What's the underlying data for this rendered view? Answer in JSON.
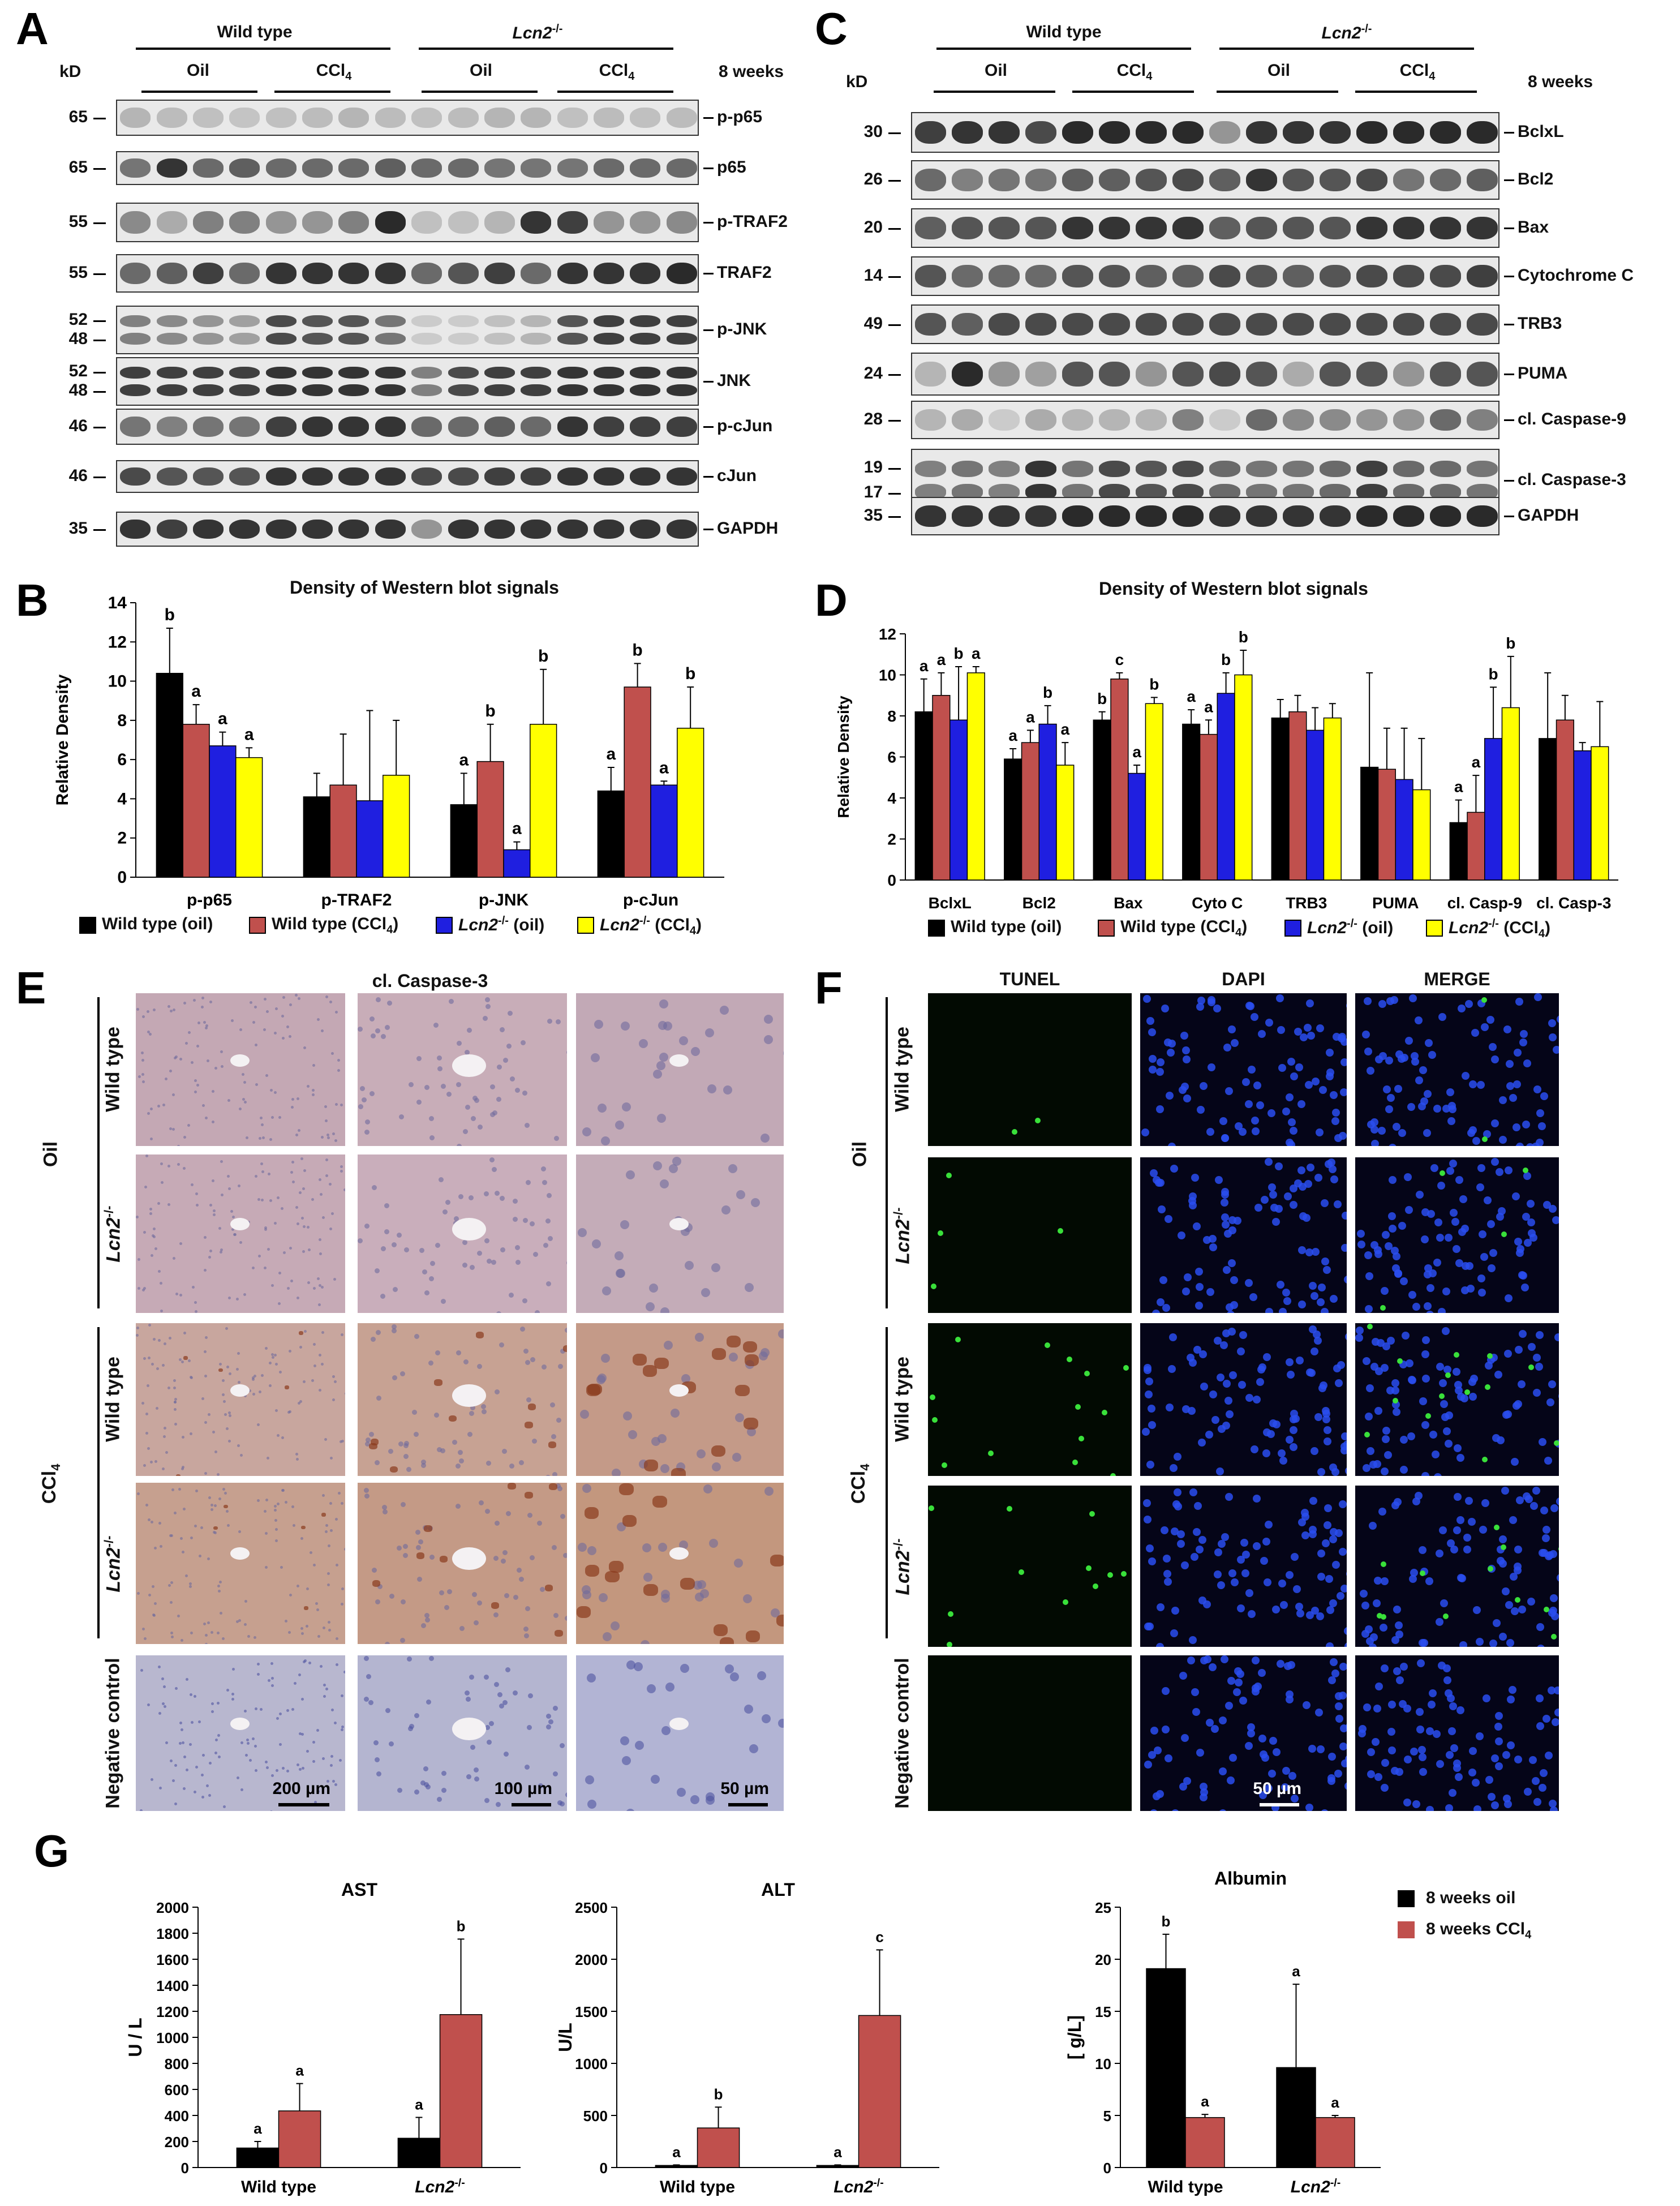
{
  "colors": {
    "wt_oil": "#000000",
    "wt_ccl4": "#c0504d",
    "ko_oil": "#1f1fe0",
    "ko_ccl4": "#ffff00",
    "bar_red": "#c0504d"
  },
  "panelA": {
    "letter": "A",
    "kd": "kD",
    "wt": "Wild type",
    "ko": "Lcn2",
    "ko_sup": "-/-",
    "oil": "Oil",
    "ccl4": "CCl",
    "ccl4_sub": "4",
    "weeks": "8 weeks",
    "blots": [
      {
        "kd": [
          "65"
        ],
        "label": "p-p65",
        "bands": [
          0.25,
          0.22,
          0.2,
          0.18,
          0.2,
          0.22,
          0.25,
          0.22,
          0.2,
          0.22,
          0.25,
          0.25,
          0.2,
          0.22,
          0.2,
          0.22
        ]
      },
      {
        "kd": [
          "65"
        ],
        "label": "p65",
        "bands": [
          0.55,
          0.85,
          0.6,
          0.65,
          0.6,
          0.6,
          0.6,
          0.65,
          0.6,
          0.6,
          0.55,
          0.55,
          0.55,
          0.6,
          0.6,
          0.6
        ]
      },
      {
        "kd": [
          "55"
        ],
        "label": "p-TRAF2",
        "bands": [
          0.45,
          0.3,
          0.5,
          0.5,
          0.4,
          0.4,
          0.5,
          0.9,
          0.2,
          0.2,
          0.25,
          0.85,
          0.8,
          0.4,
          0.4,
          0.45
        ]
      },
      {
        "kd": [
          "55"
        ],
        "label": "TRAF2",
        "bands": [
          0.6,
          0.65,
          0.8,
          0.6,
          0.85,
          0.85,
          0.85,
          0.85,
          0.6,
          0.7,
          0.8,
          0.6,
          0.85,
          0.85,
          0.85,
          0.9
        ]
      },
      {
        "kd": [
          "52",
          "48"
        ],
        "label": "p-JNK",
        "bands": [
          0.5,
          0.45,
          0.4,
          0.35,
          0.75,
          0.7,
          0.7,
          0.55,
          0.15,
          0.15,
          0.2,
          0.25,
          0.7,
          0.8,
          0.8,
          0.8
        ]
      },
      {
        "kd": [
          "52",
          "48"
        ],
        "label": "JNK",
        "bands": [
          0.8,
          0.8,
          0.8,
          0.8,
          0.85,
          0.85,
          0.85,
          0.85,
          0.5,
          0.75,
          0.8,
          0.8,
          0.85,
          0.85,
          0.85,
          0.85
        ]
      },
      {
        "kd": [
          "46"
        ],
        "label": "p-cJun",
        "bands": [
          0.55,
          0.5,
          0.55,
          0.55,
          0.8,
          0.85,
          0.85,
          0.85,
          0.6,
          0.6,
          0.65,
          0.6,
          0.85,
          0.8,
          0.8,
          0.8
        ]
      },
      {
        "kd": [
          "46"
        ],
        "label": "cJun",
        "bands": [
          0.75,
          0.7,
          0.7,
          0.7,
          0.85,
          0.85,
          0.85,
          0.85,
          0.75,
          0.75,
          0.8,
          0.8,
          0.85,
          0.85,
          0.85,
          0.85
        ]
      },
      {
        "kd": [
          "35"
        ],
        "label": "GAPDH",
        "bands": [
          0.85,
          0.8,
          0.85,
          0.85,
          0.85,
          0.85,
          0.85,
          0.85,
          0.4,
          0.85,
          0.85,
          0.85,
          0.85,
          0.85,
          0.85,
          0.85
        ]
      }
    ]
  },
  "panelC": {
    "letter": "C",
    "kd": "kD",
    "wt": "Wild type",
    "ko": "Lcn2",
    "ko_sup": "-/-",
    "oil": "Oil",
    "ccl4": "CCl",
    "ccl4_sub": "4",
    "weeks": "8 weeks",
    "blots": [
      {
        "kd": [
          "30"
        ],
        "label": "BclxL",
        "bands": [
          0.8,
          0.85,
          0.85,
          0.75,
          0.9,
          0.9,
          0.9,
          0.9,
          0.4,
          0.85,
          0.85,
          0.85,
          0.9,
          0.9,
          0.9,
          0.9
        ]
      },
      {
        "kd": [
          "26"
        ],
        "label": "Bcl2",
        "bands": [
          0.6,
          0.5,
          0.55,
          0.55,
          0.65,
          0.65,
          0.7,
          0.75,
          0.65,
          0.85,
          0.7,
          0.7,
          0.75,
          0.55,
          0.6,
          0.65
        ]
      },
      {
        "kd": [
          "20"
        ],
        "label": "Bax",
        "bands": [
          0.65,
          0.7,
          0.7,
          0.7,
          0.85,
          0.85,
          0.85,
          0.85,
          0.65,
          0.7,
          0.7,
          0.7,
          0.85,
          0.85,
          0.85,
          0.85
        ]
      },
      {
        "kd": [
          "14"
        ],
        "label": "Cytochrome C",
        "bands": [
          0.7,
          0.6,
          0.6,
          0.6,
          0.7,
          0.7,
          0.65,
          0.65,
          0.75,
          0.7,
          0.65,
          0.7,
          0.75,
          0.75,
          0.75,
          0.8
        ]
      },
      {
        "kd": [
          "49"
        ],
        "label": "TRB3",
        "bands": [
          0.7,
          0.65,
          0.75,
          0.75,
          0.75,
          0.75,
          0.75,
          0.75,
          0.75,
          0.75,
          0.75,
          0.75,
          0.75,
          0.75,
          0.75,
          0.75
        ]
      },
      {
        "kd": [
          "24"
        ],
        "label": "PUMA",
        "bands": [
          0.25,
          0.9,
          0.4,
          0.35,
          0.7,
          0.7,
          0.4,
          0.7,
          0.75,
          0.7,
          0.3,
          0.7,
          0.7,
          0.4,
          0.7,
          0.7
        ]
      },
      {
        "kd": [
          "28"
        ],
        "label": "cl. Caspase-9",
        "bands": [
          0.25,
          0.3,
          0.15,
          0.3,
          0.25,
          0.25,
          0.25,
          0.5,
          0.15,
          0.6,
          0.45,
          0.45,
          0.4,
          0.4,
          0.6,
          0.5
        ]
      },
      {
        "kd": [
          "19",
          "17"
        ],
        "label": "cl. Caspase-3",
        "bands": [
          0.5,
          0.55,
          0.5,
          0.85,
          0.55,
          0.75,
          0.7,
          0.75,
          0.6,
          0.55,
          0.55,
          0.6,
          0.8,
          0.6,
          0.6,
          0.55
        ]
      },
      {
        "kd": [
          "35"
        ],
        "label": "GAPDH",
        "bands": [
          0.85,
          0.85,
          0.85,
          0.85,
          0.9,
          0.9,
          0.9,
          0.9,
          0.85,
          0.85,
          0.85,
          0.85,
          0.9,
          0.9,
          0.9,
          0.9
        ]
      }
    ]
  },
  "panelB": {
    "letter": "B",
    "chart_data": {
      "type": "bar",
      "title": "Density of Western blot signals",
      "ylabel": "Relative Density",
      "ylim": [
        0,
        14
      ],
      "yticks": [
        0,
        2,
        4,
        6,
        8,
        10,
        12,
        14
      ],
      "categories": [
        "p-p65",
        "p-TRAF2",
        "p-JNK",
        "p-cJun"
      ],
      "series": [
        {
          "name": "Wild type (oil)",
          "values": [
            10.4,
            4.1,
            3.7,
            4.4
          ],
          "err": [
            2.3,
            1.2,
            1.6,
            1.2
          ],
          "letters": [
            "b",
            "",
            "a",
            "a"
          ]
        },
        {
          "name": "Wild type (CCl4)",
          "values": [
            7.8,
            4.7,
            5.9,
            9.7
          ],
          "err": [
            1.0,
            2.6,
            1.9,
            1.2
          ],
          "letters": [
            "a",
            "",
            "b",
            "b"
          ]
        },
        {
          "name": "Lcn2-/- (oil)",
          "values": [
            6.7,
            3.9,
            1.4,
            4.7
          ],
          "err": [
            0.7,
            4.6,
            0.4,
            0.2
          ],
          "letters": [
            "a",
            "",
            "a",
            "a"
          ]
        },
        {
          "name": "Lcn2-/- (CCl4)",
          "values": [
            6.1,
            5.2,
            7.8,
            7.6
          ],
          "err": [
            0.5,
            2.8,
            2.8,
            2.1
          ],
          "letters": [
            "a",
            "",
            "b",
            "b"
          ]
        }
      ]
    }
  },
  "panelD": {
    "letter": "D",
    "chart_data": {
      "type": "bar",
      "title": "Density of Western blot signals",
      "ylabel": "Relative Density",
      "ylim": [
        0,
        12
      ],
      "yticks": [
        0,
        2,
        4,
        6,
        8,
        10,
        12
      ],
      "categories": [
        "BclxL",
        "Bcl2",
        "Bax",
        "Cyto C",
        "TRB3",
        "PUMA",
        "cl. Casp-9",
        "cl. Casp-3"
      ],
      "series": [
        {
          "name": "Wild type (oil)",
          "values": [
            8.2,
            5.9,
            7.8,
            7.6,
            7.9,
            5.5,
            2.8,
            6.9
          ],
          "err": [
            1.6,
            0.5,
            0.4,
            0.7,
            0.9,
            4.6,
            1.1,
            3.2
          ],
          "letters": [
            "a",
            "a",
            "b",
            "a",
            "",
            "",
            "a",
            ""
          ]
        },
        {
          "name": "Wild type (CCl4)",
          "values": [
            9.0,
            6.7,
            9.8,
            7.1,
            8.2,
            5.4,
            3.3,
            7.8
          ],
          "err": [
            1.1,
            0.6,
            0.3,
            0.7,
            0.8,
            2.0,
            1.8,
            1.2
          ],
          "letters": [
            "a",
            "a",
            "c",
            "a",
            "",
            "",
            "a",
            ""
          ]
        },
        {
          "name": "Lcn2-/- (oil)",
          "values": [
            7.8,
            7.6,
            5.2,
            9.1,
            7.3,
            4.9,
            6.9,
            6.3
          ],
          "err": [
            2.6,
            0.9,
            0.4,
            1.0,
            1.1,
            2.5,
            2.5,
            0.4
          ],
          "letters": [
            "b",
            "b",
            "a",
            "b",
            "",
            "",
            "b",
            ""
          ]
        },
        {
          "name": "Lcn2-/- (CCl4)",
          "values": [
            10.1,
            5.6,
            8.6,
            10.0,
            7.9,
            4.4,
            8.4,
            6.5
          ],
          "err": [
            0.3,
            1.1,
            0.3,
            1.2,
            0.7,
            2.5,
            2.5,
            2.2
          ],
          "letters": [
            "a",
            "a",
            "b",
            "b",
            "",
            "",
            "b",
            ""
          ]
        }
      ]
    }
  },
  "legend": {
    "items": [
      {
        "pre": "Wild type (oil)",
        "it": "",
        "sup": "",
        "post": "",
        "sub": "",
        "end": ""
      },
      {
        "pre": "Wild type (CCl",
        "it": "",
        "sup": "",
        "post": "",
        "sub": "4",
        "end": ")"
      },
      {
        "pre": "",
        "it": "Lcn2",
        "sup": "-/-",
        "post": " (oil)",
        "sub": "",
        "end": ""
      },
      {
        "pre": "",
        "it": "Lcn2",
        "sup": "-/-",
        "post": " (CCl",
        "sub": "4",
        "end": ")"
      }
    ]
  },
  "panelE": {
    "letter": "E",
    "title": "cl. Caspase-3",
    "group_oil": "Oil",
    "group_ccl4": "CCl",
    "group_ccl4_sub": "4",
    "row_wt": "Wild type",
    "row_ko": "Lcn2",
    "row_ko_sup": "-/-",
    "row_neg": "Negative control",
    "scales": [
      "200 µm",
      "100 µm",
      "50 µm"
    ]
  },
  "panelF": {
    "letter": "F",
    "cols": [
      "TUNEL",
      "DAPI",
      "MERGE"
    ],
    "group_oil": "Oil",
    "group_ccl4": "CCl",
    "group_ccl4_sub": "4",
    "row_wt": "Wild type",
    "row_ko": "Lcn2",
    "row_ko_sup": "-/-",
    "row_neg": "Negative control",
    "scale": "50 µm"
  },
  "panelG": {
    "letter": "G",
    "legend": [
      "8 weeks oil",
      "8 weeks CCl"
    ],
    "legend_sub": "4",
    "charts": [
      {
        "type": "bar",
        "title": "AST",
        "ylabel": "U / L",
        "ylim": [
          0,
          2000
        ],
        "yticks": [
          0,
          200,
          400,
          600,
          800,
          1000,
          1200,
          1400,
          1600,
          1800,
          2000
        ],
        "categories": [
          "Wild type",
          "Lcn2-/-"
        ],
        "series": [
          {
            "name": "8 weeks oil",
            "values": [
              150,
              225
            ],
            "err": [
              50,
              160
            ],
            "letters": [
              "a",
              "a"
            ]
          },
          {
            "name": "8 weeks CCl4",
            "values": [
              435,
              1175
            ],
            "err": [
              210,
              580
            ],
            "letters": [
              "a",
              "b"
            ]
          }
        ]
      },
      {
        "type": "bar",
        "title": "ALT",
        "ylabel": "U/L",
        "ylim": [
          0,
          2500
        ],
        "yticks": [
          0,
          500,
          1000,
          1500,
          2000,
          2500
        ],
        "categories": [
          "Wild type",
          "Lcn2-/-"
        ],
        "series": [
          {
            "name": "8 weeks oil",
            "values": [
              20,
              20
            ],
            "err": [
              5,
              5
            ],
            "letters": [
              "a",
              "a"
            ]
          },
          {
            "name": "8 weeks CCl4",
            "values": [
              380,
              1460
            ],
            "err": [
              200,
              630
            ],
            "letters": [
              "b",
              "c"
            ]
          }
        ]
      },
      {
        "type": "bar",
        "title": "Albumin",
        "ylabel": "[ g/L]",
        "ylim": [
          0,
          25
        ],
        "yticks": [
          0,
          5,
          10,
          15,
          20,
          25
        ],
        "categories": [
          "Wild type",
          "Lcn2-/-"
        ],
        "series": [
          {
            "name": "8 weeks oil",
            "values": [
              19.1,
              9.6
            ],
            "err": [
              3.3,
              8.0
            ],
            "letters": [
              "b",
              "a"
            ]
          },
          {
            "name": "8 weeks CCl4",
            "values": [
              4.8,
              4.8
            ],
            "err": [
              0.3,
              0.2
            ],
            "letters": [
              "a",
              "a"
            ]
          }
        ]
      }
    ]
  }
}
